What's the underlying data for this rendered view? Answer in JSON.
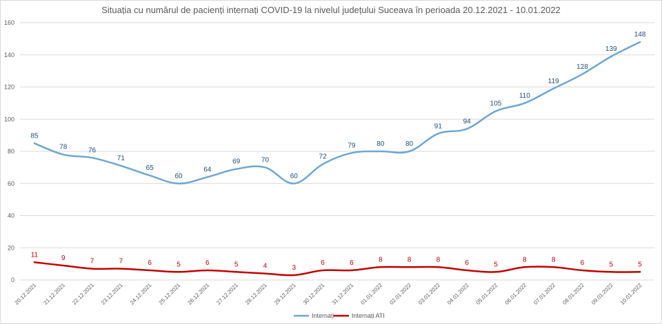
{
  "chart_data": {
    "type": "line",
    "title": "Situația cu numărul de pacienți internați COVID-19 la nivelul județului Suceava în perioada 20.12.2021 - 10.01.2022",
    "xlabel": "",
    "ylabel": "",
    "ylim": [
      0,
      160
    ],
    "yticks": [
      0,
      20,
      40,
      60,
      80,
      100,
      120,
      140,
      160
    ],
    "grid": true,
    "legend_position": "bottom",
    "categories": [
      "20.12.2021",
      "21.12.2021",
      "22.12.2021",
      "23.12.2021",
      "24.12.2021",
      "25.12.2021",
      "26.12.2021",
      "27.12.2021",
      "28.12.2021",
      "29.12.2021",
      "30.12.2021",
      "31.12.2021",
      "01.01.2022",
      "02.01.2022",
      "03.01.2022",
      "04.01.2022",
      "05.01.2022",
      "06.01.2022",
      "07.01.2022",
      "08.01.2022",
      "09.01.2022",
      "10.01.2022"
    ],
    "series": [
      {
        "name": "Internați",
        "color": "#6ea6d1",
        "label_color": "#1f4e79",
        "values": [
          85,
          78,
          76,
          71,
          65,
          60,
          64,
          69,
          70,
          60,
          72,
          79,
          80,
          80,
          91,
          94,
          105,
          110,
          119,
          128,
          139,
          148
        ]
      },
      {
        "name": "Internați ATI",
        "color": "#c00000",
        "label_color": "#c00000",
        "values": [
          11,
          9,
          7,
          7,
          6,
          5,
          6,
          5,
          4,
          3,
          6,
          6,
          8,
          8,
          8,
          6,
          5,
          8,
          8,
          6,
          5,
          5
        ]
      }
    ]
  }
}
